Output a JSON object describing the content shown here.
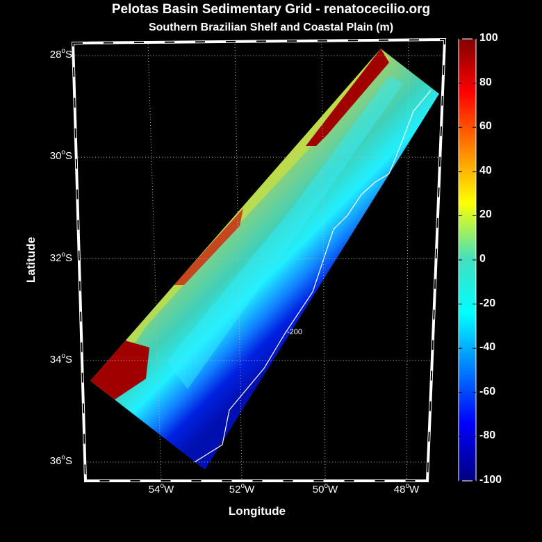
{
  "chart_data": {
    "type": "heatmap",
    "title": "Pelotas Basin Sedimentary Grid - renatocecilio.org",
    "subtitle": "Southern Brazilian Shelf and Coastal Plain (m)",
    "xlabel": "Longitude",
    "ylabel": "Latitude",
    "lat_ticks": [
      {
        "value": -28,
        "num": "28",
        "hemi": "S"
      },
      {
        "value": -30,
        "num": "30",
        "hemi": "S"
      },
      {
        "value": -32,
        "num": "32",
        "hemi": "S"
      },
      {
        "value": -34,
        "num": "34",
        "hemi": "S"
      },
      {
        "value": -36,
        "num": "36",
        "hemi": "S"
      }
    ],
    "lon_ticks": [
      {
        "value": -54,
        "num": "54",
        "hemi": "W"
      },
      {
        "value": -52,
        "num": "52",
        "hemi": "W"
      },
      {
        "value": -50,
        "num": "50",
        "hemi": "W"
      },
      {
        "value": -48,
        "num": "48",
        "hemi": "W"
      }
    ],
    "colorbar": {
      "min": -100,
      "max": 100,
      "ticks": [
        "100",
        "80",
        "60",
        "40",
        "20",
        "0",
        "-20",
        "-40",
        "-60",
        "-80",
        "-100"
      ],
      "colormap": "jet"
    },
    "contour": {
      "level": -200,
      "label": "-200",
      "color": "#ffffff"
    },
    "grid": true,
    "degree_symbol": "o"
  }
}
